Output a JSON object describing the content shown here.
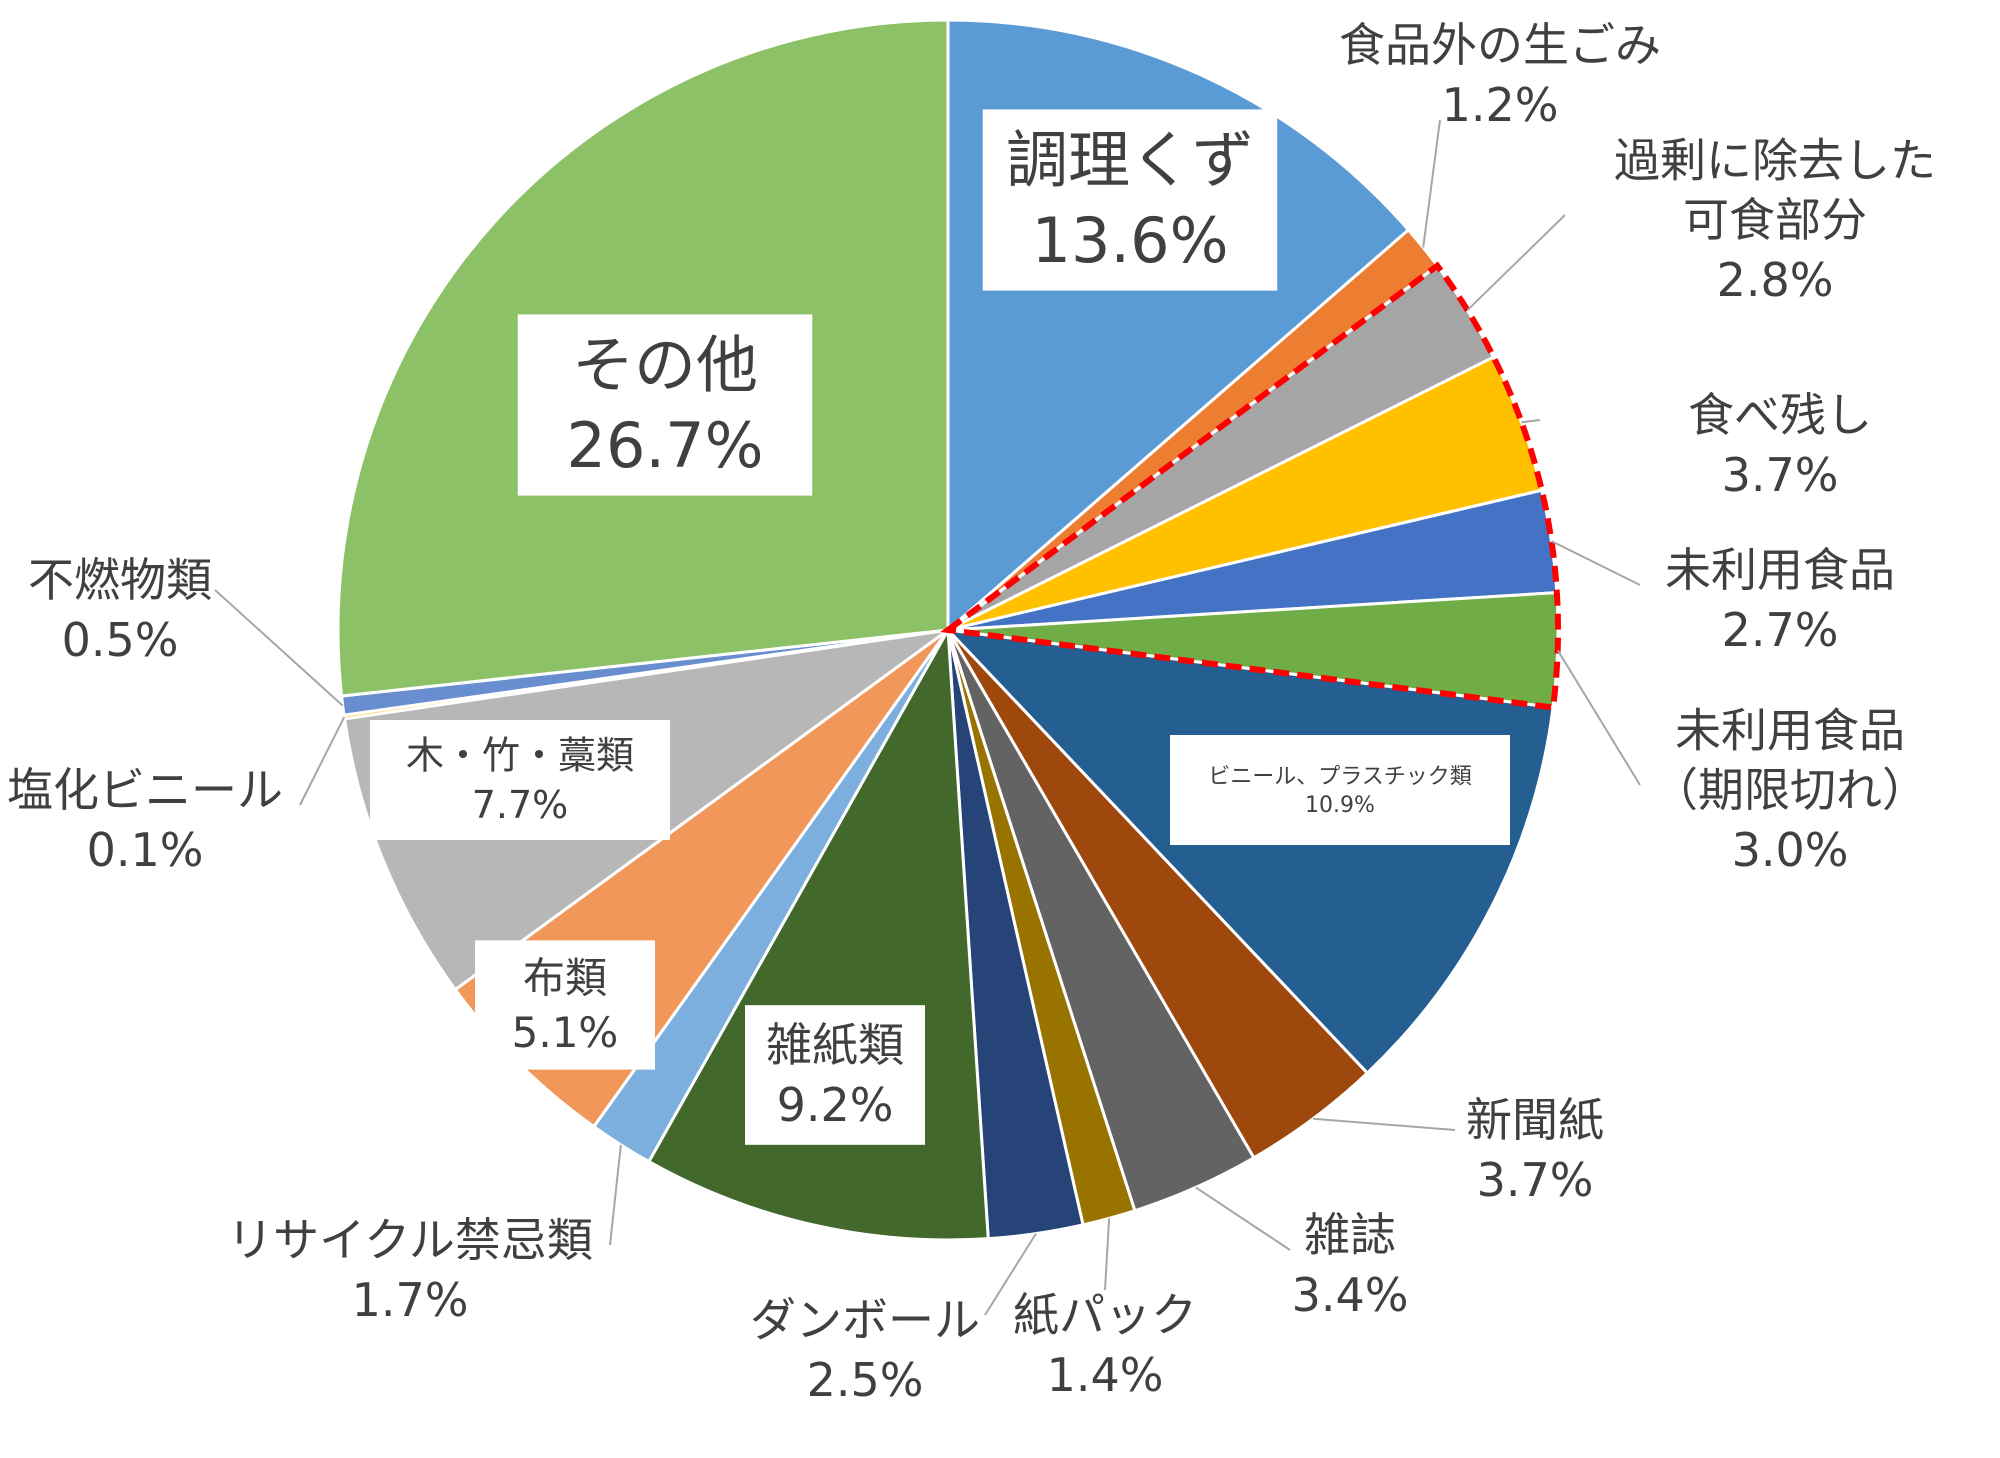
{
  "chart_data": {
    "type": "pie",
    "start_angle_deg": 0,
    "direction": "clockwise",
    "slices": [
      {
        "label": "調理くず",
        "value": 13.6,
        "value_label": "13.6%",
        "color": "#5b9bd5",
        "label_style": "boxed-inside"
      },
      {
        "label": "食品外の生ごみ",
        "value": 1.2,
        "value_label": "1.2%",
        "color": "#ed7d31",
        "label_style": "outside"
      },
      {
        "label": "過剰に除去した\n可食部分",
        "value": 2.8,
        "value_label": "2.8%",
        "color": "#a5a5a5",
        "label_style": "outside"
      },
      {
        "label": "食べ残し",
        "value": 3.7,
        "value_label": "3.7%",
        "color": "#ffc000",
        "label_style": "outside"
      },
      {
        "label": "未利用食品",
        "value": 2.7,
        "value_label": "2.7%",
        "color": "#4472c4",
        "label_style": "outside"
      },
      {
        "label": "未利用食品\n（期限切れ）",
        "value": 3.0,
        "value_label": "3.0%",
        "color": "#70ad47",
        "label_style": "outside"
      },
      {
        "label": "ビニール、プラスチック類",
        "value": 10.9,
        "value_label": "10.9%",
        "color": "#255e91",
        "label_style": "boxed-inside"
      },
      {
        "label": "新聞紙",
        "value": 3.7,
        "value_label": "3.7%",
        "color": "#9e480e",
        "label_style": "outside"
      },
      {
        "label": "雑誌",
        "value": 3.4,
        "value_label": "3.4%",
        "color": "#636363",
        "label_style": "outside"
      },
      {
        "label": "紙パック",
        "value": 1.4,
        "value_label": "1.4%",
        "color": "#997300",
        "label_style": "outside"
      },
      {
        "label": "ダンボール",
        "value": 2.5,
        "value_label": "2.5%",
        "color": "#264478",
        "label_style": "outside"
      },
      {
        "label": "雑紙類",
        "value": 9.2,
        "value_label": "9.2%",
        "color": "#43682b",
        "label_style": "boxed-inside"
      },
      {
        "label": "リサイクル禁忌類",
        "value": 1.7,
        "value_label": "1.7%",
        "color": "#7cafdd",
        "label_style": "outside"
      },
      {
        "label": "布類",
        "value": 5.1,
        "value_label": "5.1%",
        "color": "#f1975a",
        "label_style": "boxed-inside"
      },
      {
        "label": "木・竹・藁類",
        "value": 7.7,
        "value_label": "7.7%",
        "color": "#b7b7b7",
        "label_style": "boxed-inside"
      },
      {
        "label": "塩化ビニール",
        "value": 0.1,
        "value_label": "0.1%",
        "color": "#ffcd33",
        "label_style": "outside"
      },
      {
        "label": "不燃物類",
        "value": 0.5,
        "value_label": "0.5%",
        "color": "#698ed0",
        "label_style": "outside"
      },
      {
        "label": "その他",
        "value": 26.7,
        "value_label": "26.7%",
        "color": "#8cc168",
        "label_style": "boxed-inside"
      }
    ],
    "highlight": {
      "description": "food loss group outlined with red dashed border",
      "slices": [
        "過剰に除去した\n可食部分",
        "食べ残し",
        "未利用食品",
        "未利用食品\n（期限切れ）"
      ],
      "color": "#ff0000"
    }
  }
}
